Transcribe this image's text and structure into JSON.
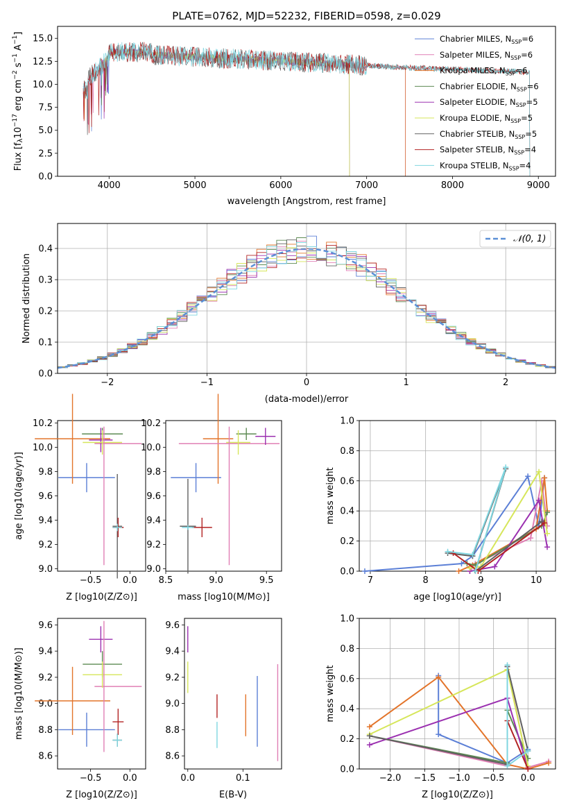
{
  "chart_data": [
    {
      "type": "line",
      "title": "PLATE=0762, MJD=52232, FIBERID=0598, z=0.029",
      "xlabel": "wavelength [Angstrom, rest frame]",
      "ylabel": "Flux [f_λ 10^-17 erg cm^-2 s^-1 A^-1]",
      "xlim": [
        3400,
        9200
      ],
      "ylim": [
        0,
        16.3
      ],
      "xticks": [
        4000,
        5000,
        6000,
        7000,
        8000,
        9000
      ],
      "yticks": [
        0.0,
        2.5,
        5.0,
        7.5,
        10.0,
        12.5,
        15.0
      ],
      "legend_position": "top-right",
      "series": [
        {
          "name": "Chabrier MILES, N_SSP=6",
          "color": "#5b7fd6",
          "start": 3700,
          "end": 7450
        },
        {
          "name": "Salpeter MILES, N_SSP=6",
          "color": "#e07fb5",
          "start": 3700,
          "end": 7450
        },
        {
          "name": "Kroupa MILES, N_SSP=6",
          "color": "#e3742a",
          "start": 3700,
          "end": 7450
        },
        {
          "name": "Chabrier ELODIE, N_SSP=6",
          "color": "#5c8a52",
          "start": 3900,
          "end": 6800
        },
        {
          "name": "Salpeter ELODIE, N_SSP=5",
          "color": "#9b30b0",
          "start": 3900,
          "end": 6800
        },
        {
          "name": "Kroupa ELODIE, N_SSP=5",
          "color": "#d6e65a",
          "start": 3900,
          "end": 6800
        },
        {
          "name": "Chabrier STELIB, N_SSP=5",
          "color": "#606060",
          "start": 3700,
          "end": 8900
        },
        {
          "name": "Salpeter STELIB, N_SSP=4",
          "color": "#b22222",
          "start": 3700,
          "end": 8900
        },
        {
          "name": "Kroupa STELIB, N_SSP=4",
          "color": "#7fd6e0",
          "start": 3700,
          "end": 8900
        }
      ]
    },
    {
      "type": "histogram",
      "xlabel": "(data-model)/error",
      "ylabel": "Normed distribution",
      "xlim": [
        -2.5,
        2.5
      ],
      "ylim": [
        0,
        0.48
      ],
      "xticks": [
        -2,
        -1,
        0,
        1,
        2
      ],
      "yticks": [
        0.0,
        0.1,
        0.2,
        0.3,
        0.4
      ],
      "grid": true,
      "legend": "𝒩(0, 1)",
      "legend_position": "top-right",
      "bin_width": 0.1,
      "reference_curve": {
        "name": "𝒩(0, 1)",
        "color": "#5b8fd6",
        "mean": 0,
        "sigma": 1
      }
    },
    {
      "type": "errorbar",
      "xlabel": "Z [log10(Z/Z⊙)]",
      "ylabel": "age  [log10(age/yr)]",
      "xlim": [
        -0.92,
        0.2
      ],
      "ylim": [
        8.98,
        10.22
      ],
      "xticks": [
        -0.5,
        0.0
      ],
      "xtick_labels": [
        "−0.5",
        "0.0"
      ],
      "yticks": [
        9.0,
        9.2,
        9.4,
        9.6,
        9.8,
        10.0,
        10.2
      ],
      "points": [
        {
          "x": -0.55,
          "y": 9.75,
          "xerr": 0.36,
          "yerr": 0.12,
          "color": "#5b7fd6"
        },
        {
          "x": -0.73,
          "y": 10.07,
          "xerr": 0.48,
          "yerr": 0.37,
          "color": "#e3742a"
        },
        {
          "x": -0.15,
          "y": 10.03,
          "xerr": 0.3,
          "yerr": 0.0,
          "color": "#e07fb5"
        },
        {
          "x": -0.35,
          "y": 10.11,
          "xerr": 0.26,
          "yerr": 0.05,
          "color": "#5c8a52"
        },
        {
          "x": -0.37,
          "y": 10.06,
          "xerr": 0.15,
          "yerr": 0.1,
          "color": "#9b30b0"
        },
        {
          "x": -0.35,
          "y": 10.04,
          "xerr": 0.25,
          "yerr": 0.1,
          "color": "#d6e65a"
        },
        {
          "x": -0.16,
          "y": 9.35,
          "xerr": 0.06,
          "yerr": 0.43,
          "color": "#606060"
        },
        {
          "x": -0.15,
          "y": 9.34,
          "xerr": 0.07,
          "yerr": 0.08,
          "color": "#b22222"
        },
        {
          "x": -0.16,
          "y": 9.34,
          "xerr": 0.06,
          "yerr": 0.03,
          "color": "#7fd6e0"
        },
        {
          "x": -0.33,
          "y": 9.6,
          "xerr": 0.0,
          "yerr": 0.57,
          "color": "#e07fb5"
        }
      ]
    },
    {
      "type": "errorbar",
      "xlabel": "mass [log10(M/M⊙)]",
      "ylabel": "",
      "xlim": [
        8.5,
        9.65
      ],
      "ylim": [
        8.98,
        10.22
      ],
      "xticks": [
        8.5,
        9.0,
        9.5
      ],
      "yticks": [
        9.0,
        9.2,
        9.4,
        9.6,
        9.8,
        10.0,
        10.2
      ],
      "points": [
        {
          "x": 8.8,
          "y": 9.75,
          "xerr": 0.25,
          "yerr": 0.12,
          "color": "#5b7fd6"
        },
        {
          "x": 9.02,
          "y": 10.07,
          "xerr": 0.15,
          "yerr": 0.37,
          "color": "#e3742a"
        },
        {
          "x": 9.13,
          "y": 10.03,
          "xerr": 0.5,
          "yerr": 0.0,
          "color": "#e07fb5"
        },
        {
          "x": 9.3,
          "y": 10.11,
          "xerr": 0.1,
          "yerr": 0.05,
          "color": "#5c8a52"
        },
        {
          "x": 9.49,
          "y": 10.09,
          "xerr": 0.1,
          "yerr": 0.07,
          "color": "#9b30b0"
        },
        {
          "x": 9.22,
          "y": 10.04,
          "xerr": 0.12,
          "yerr": 0.1,
          "color": "#d6e65a"
        },
        {
          "x": 8.72,
          "y": 9.35,
          "xerr": 0.08,
          "yerr": 0.39,
          "color": "#606060"
        },
        {
          "x": 8.86,
          "y": 9.34,
          "xerr": 0.1,
          "yerr": 0.08,
          "color": "#b22222"
        },
        {
          "x": 8.72,
          "y": 9.34,
          "xerr": 0.06,
          "yerr": 0.02,
          "color": "#7fd6e0"
        },
        {
          "x": 9.13,
          "y": 9.6,
          "xerr": 0.0,
          "yerr": 0.57,
          "color": "#e07fb5"
        }
      ]
    },
    {
      "type": "line",
      "xlabel": "age  [log10(age/yr)]",
      "ylabel": "mass weight",
      "xlim": [
        6.8,
        10.35
      ],
      "ylim": [
        0,
        1
      ],
      "xticks": [
        7,
        8,
        9,
        10
      ],
      "yticks": [
        0.0,
        0.2,
        0.4,
        0.6,
        0.8,
        1.0
      ],
      "grid": true,
      "series": [
        {
          "name": "Chabrier MILES",
          "color": "#5b7fd6",
          "x": [
            6.9,
            8.65,
            8.85,
            9.85,
            10.05,
            10.15
          ],
          "y": [
            0.0,
            0.05,
            0.1,
            0.63,
            0.3,
            0.62
          ]
        },
        {
          "name": "Salpeter MILES",
          "color": "#e07fb5",
          "x": [
            8.8,
            8.9,
            9.9,
            10.1,
            10.2
          ],
          "y": [
            0.0,
            0.05,
            0.22,
            0.6,
            0.3
          ]
        },
        {
          "name": "Kroupa MILES",
          "color": "#e3742a",
          "x": [
            8.6,
            8.85,
            10.0,
            10.15,
            10.2
          ],
          "y": [
            0.0,
            0.04,
            0.28,
            0.62,
            0.4
          ]
        },
        {
          "name": "Chabrier ELODIE",
          "color": "#5c8a52",
          "x": [
            8.75,
            8.9,
            10.1,
            10.2
          ],
          "y": [
            0.05,
            0.04,
            0.3,
            0.39
          ]
        },
        {
          "name": "Salpeter ELODIE",
          "color": "#9b30b0",
          "x": [
            8.8,
            9.25,
            10.05,
            10.2
          ],
          "y": [
            0.0,
            0.03,
            0.47,
            0.16
          ]
        },
        {
          "name": "Kroupa ELODIE",
          "color": "#d6e65a",
          "x": [
            8.8,
            9.0,
            10.05,
            10.2
          ],
          "y": [
            0.02,
            0.03,
            0.66,
            0.25
          ]
        },
        {
          "name": "Chabrier STELIB",
          "color": "#606060",
          "x": [
            8.4,
            8.85,
            9.45,
            8.9,
            10.1
          ],
          "y": [
            0.12,
            0.1,
            0.68,
            0.0,
            0.33
          ]
        },
        {
          "name": "Salpeter STELIB",
          "color": "#b22222",
          "x": [
            8.5,
            8.95,
            10.15
          ],
          "y": [
            0.12,
            0.0,
            0.32
          ]
        },
        {
          "name": "Kroupa STELIB",
          "color": "#7fd6e0",
          "x": [
            8.4,
            8.85,
            9.45,
            8.9
          ],
          "y": [
            0.13,
            0.11,
            0.69,
            0.0
          ]
        }
      ]
    },
    {
      "type": "errorbar",
      "xlabel": "Z [log10(Z/Z⊙)]",
      "ylabel": "mass [log10(M/M⊙)]",
      "xlim": [
        -0.92,
        0.2
      ],
      "ylim": [
        8.5,
        9.65
      ],
      "xticks": [
        -0.5,
        0.0
      ],
      "xtick_labels": [
        "−0.5",
        "0.0"
      ],
      "yticks": [
        8.6,
        8.8,
        9.0,
        9.2,
        9.4,
        9.6
      ],
      "points": [
        {
          "x": -0.55,
          "y": 8.8,
          "xerr": 0.36,
          "yerr": 0.13,
          "color": "#5b7fd6"
        },
        {
          "x": -0.73,
          "y": 9.02,
          "xerr": 0.48,
          "yerr": 0.26,
          "color": "#e3742a"
        },
        {
          "x": -0.15,
          "y": 9.13,
          "xerr": 0.3,
          "yerr": 0.0,
          "color": "#e07fb5"
        },
        {
          "x": -0.35,
          "y": 9.3,
          "xerr": 0.25,
          "yerr": 0.1,
          "color": "#5c8a52"
        },
        {
          "x": -0.37,
          "y": 9.49,
          "xerr": 0.15,
          "yerr": 0.1,
          "color": "#9b30b0"
        },
        {
          "x": -0.35,
          "y": 9.22,
          "xerr": 0.25,
          "yerr": 0.1,
          "color": "#d6e65a"
        },
        {
          "x": -0.16,
          "y": 8.72,
          "xerr": 0.06,
          "yerr": 0.05,
          "color": "#606060"
        },
        {
          "x": -0.15,
          "y": 8.86,
          "xerr": 0.07,
          "yerr": 0.1,
          "color": "#b22222"
        },
        {
          "x": -0.16,
          "y": 8.72,
          "xerr": 0.06,
          "yerr": 0.05,
          "color": "#7fd6e0"
        },
        {
          "x": -0.33,
          "y": 9.13,
          "xerr": 0.0,
          "yerr": 0.5,
          "color": "#e07fb5"
        }
      ]
    },
    {
      "type": "errorbar",
      "xlabel": "E(B-V)",
      "ylabel": "",
      "xlim": [
        -0.006,
        0.17
      ],
      "ylim": [
        8.5,
        9.65
      ],
      "xticks": [
        0.0,
        0.1
      ],
      "yticks": [
        8.6,
        8.8,
        9.0,
        9.2,
        9.4,
        9.6
      ],
      "points": [
        {
          "x": 0.0,
          "y": 9.49,
          "xerr": 0,
          "yerr": 0.1,
          "color": "#9b30b0"
        },
        {
          "x": 0.0,
          "y": 9.2,
          "xerr": 0,
          "yerr": 0.12,
          "color": "#d6e65a"
        },
        {
          "x": 0.053,
          "y": 8.98,
          "xerr": 0,
          "yerr": 0.09,
          "color": "#b22222"
        },
        {
          "x": 0.053,
          "y": 8.76,
          "xerr": 0,
          "yerr": 0.1,
          "color": "#7fd6e0"
        },
        {
          "x": 0.105,
          "y": 8.91,
          "xerr": 0,
          "yerr": 0.16,
          "color": "#e3742a"
        },
        {
          "x": 0.126,
          "y": 8.94,
          "xerr": 0,
          "yerr": 0.27,
          "color": "#5b7fd6"
        },
        {
          "x": 0.163,
          "y": 8.93,
          "xerr": 0,
          "yerr": 0.37,
          "color": "#e07fb5"
        }
      ]
    },
    {
      "type": "line",
      "xlabel": "Z [log10(Z/Z⊙)]",
      "ylabel": "mass weight",
      "xlim": [
        -2.45,
        0.4
      ],
      "ylim": [
        0,
        1
      ],
      "xticks": [
        -2.0,
        -1.5,
        -1.0,
        -0.5,
        0.0
      ],
      "xtick_labels": [
        "−2.0",
        "−1.5",
        "−1.0",
        "−0.5",
        "0.0"
      ],
      "yticks": [
        0.0,
        0.2,
        0.4,
        0.6,
        0.8,
        1.0
      ],
      "grid": true,
      "series": [
        {
          "name": "Chabrier MILES",
          "color": "#5b7fd6",
          "x": [
            -1.3,
            -1.3,
            -0.3,
            0.0
          ],
          "y": [
            0.62,
            0.23,
            0.04,
            0.13
          ]
        },
        {
          "name": "Salpeter MILES",
          "color": "#e07fb5",
          "x": [
            -2.3,
            -0.3,
            -0.3,
            0.0,
            0.3
          ],
          "y": [
            0.22,
            0.02,
            0.68,
            0.01,
            0.05
          ]
        },
        {
          "name": "Kroupa MILES",
          "color": "#e3742a",
          "x": [
            -2.3,
            -1.3,
            -0.3,
            0.0,
            0.3
          ],
          "y": [
            0.28,
            0.61,
            0.03,
            0.0,
            0.04
          ]
        },
        {
          "name": "Chabrier ELODIE",
          "color": "#5c8a52",
          "x": [
            -2.3,
            -0.3,
            -0.3,
            0.0
          ],
          "y": [
            0.22,
            0.04,
            0.39,
            0.07
          ]
        },
        {
          "name": "Salpeter ELODIE",
          "color": "#9b30b0",
          "x": [
            -2.3,
            -0.3,
            0.0
          ],
          "y": [
            0.16,
            0.47,
            0.0
          ]
        },
        {
          "name": "Kroupa ELODIE",
          "color": "#d6e65a",
          "x": [
            -2.3,
            -0.3,
            0.0
          ],
          "y": [
            0.23,
            0.66,
            0.02
          ]
        },
        {
          "name": "Chabrier STELIB",
          "color": "#606060",
          "x": [
            -2.3,
            -0.3,
            -0.3,
            0.0
          ],
          "y": [
            0.22,
            0.03,
            0.68,
            0.12
          ]
        },
        {
          "name": "Salpeter STELIB",
          "color": "#b22222",
          "x": [
            -0.3,
            0.0
          ],
          "y": [
            0.32,
            0.0
          ]
        },
        {
          "name": "Kroupa STELIB",
          "color": "#7fd6e0",
          "x": [
            -0.3,
            -0.3,
            0.0
          ],
          "y": [
            0.69,
            0.02,
            0.12
          ]
        }
      ]
    }
  ]
}
